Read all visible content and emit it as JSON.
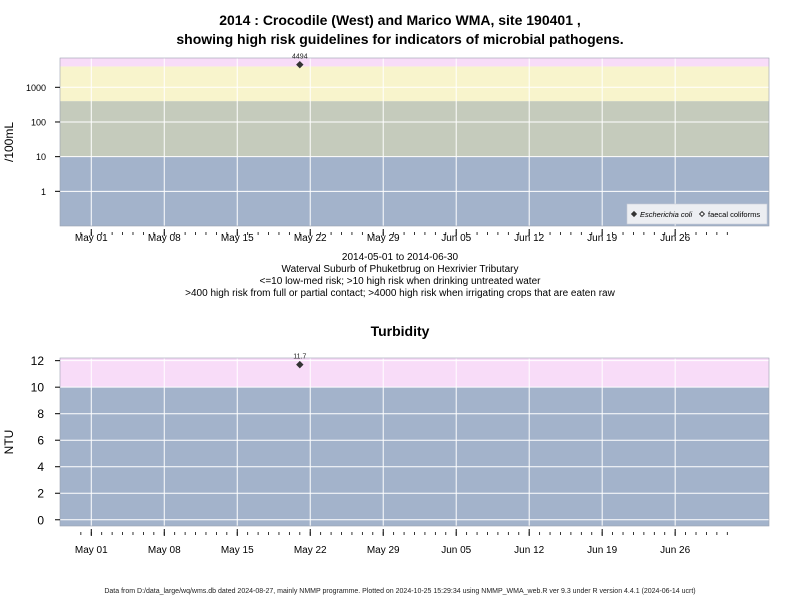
{
  "colors": {
    "high_risk_pink": "#f8dcf8",
    "irrigation_risk_yellow": "#f8f4cc",
    "contact_risk_gray": "#c5cbbc",
    "low_risk_blue": "#a3b3cb",
    "gridline": "#ffffff",
    "marker": "#333333"
  },
  "header": {
    "title_line1": "2014 : Crocodile (West) and Marico WMA, site 190401 ,",
    "title_line2": "showing high risk guidelines for indicators of microbial pathogens."
  },
  "caption": {
    "date_range": "2014-05-01 to 2014-06-30",
    "site_name": "Waterval Suburb of Phuketbrug on Hexrivier Tributary",
    "guideline1": "<=10 low-med risk; >10 high risk when drinking untreated water",
    "guideline2": ">400 high risk from full or partial contact; >4000 high risk when irrigating crops that are eaten raw"
  },
  "turbidity_title": "Turbidity",
  "footer": "Data from D:/data_large/wq/wms.db dated 2024-08-27, mainly NMMP programme. Plotted on 2024-10-25 15:29:34 using NMMP_WMA_web.R ver 9.3 under R version 4.4.1 (2024-06-14 ucrt)",
  "chart_data": [
    {
      "type": "scatter",
      "title": "",
      "xlabel": "",
      "ylabel": "/100mL",
      "y_scale": "log",
      "x_ticks": [
        "May 01",
        "May 08",
        "May 15",
        "May 22",
        "May 29",
        "Jun 05",
        "Jun 12",
        "Jun 19",
        "Jun 26"
      ],
      "x_tick_dates": [
        "2014-05-01",
        "2014-05-08",
        "2014-05-15",
        "2014-05-22",
        "2014-05-29",
        "2014-06-05",
        "2014-06-12",
        "2014-06-19",
        "2014-06-26"
      ],
      "x_range": [
        "2014-04-28",
        "2014-07-05"
      ],
      "y_ticks": [
        1,
        10,
        100,
        1000
      ],
      "y_range": [
        0.1,
        7000
      ],
      "bands": [
        {
          "from": 0.1,
          "to": 10,
          "color": "#a3b3cb"
        },
        {
          "from": 10,
          "to": 400,
          "color": "#c5cbbc"
        },
        {
          "from": 400,
          "to": 4000,
          "color": "#f8f4cc"
        },
        {
          "from": 4000,
          "to": 7000,
          "color": "#f8dcf8"
        }
      ],
      "series": [
        {
          "name": "Escherichia coli",
          "marker": "filled-diamond",
          "points": [
            {
              "x": "2014-05-21",
              "y": 4494,
              "label": "4494"
            }
          ]
        },
        {
          "name": "faecal coliforms",
          "marker": "open-diamond",
          "points": []
        }
      ],
      "legend_placement": "bottom-right",
      "grid": true
    },
    {
      "type": "scatter",
      "title": "Turbidity",
      "xlabel": "",
      "ylabel": "NTU",
      "y_scale": "linear",
      "x_ticks": [
        "May 01",
        "May 08",
        "May 15",
        "May 22",
        "May 29",
        "Jun 05",
        "Jun 12",
        "Jun 19",
        "Jun 26"
      ],
      "x_tick_dates": [
        "2014-05-01",
        "2014-05-08",
        "2014-05-15",
        "2014-05-22",
        "2014-05-29",
        "2014-06-05",
        "2014-06-12",
        "2014-06-19",
        "2014-06-26"
      ],
      "x_range": [
        "2014-04-28",
        "2014-07-05"
      ],
      "y_ticks": [
        0,
        2,
        4,
        6,
        8,
        10,
        12
      ],
      "y_range": [
        -0.47,
        12.2
      ],
      "bands": [
        {
          "from": -0.47,
          "to": 10,
          "color": "#a3b3cb"
        },
        {
          "from": 10,
          "to": 12.2,
          "color": "#f8dcf8"
        }
      ],
      "series": [
        {
          "name": "Turbidity",
          "marker": "filled-diamond",
          "points": [
            {
              "x": "2014-05-21",
              "y": 11.7,
              "label": "11.7"
            }
          ]
        }
      ],
      "grid": true
    }
  ]
}
